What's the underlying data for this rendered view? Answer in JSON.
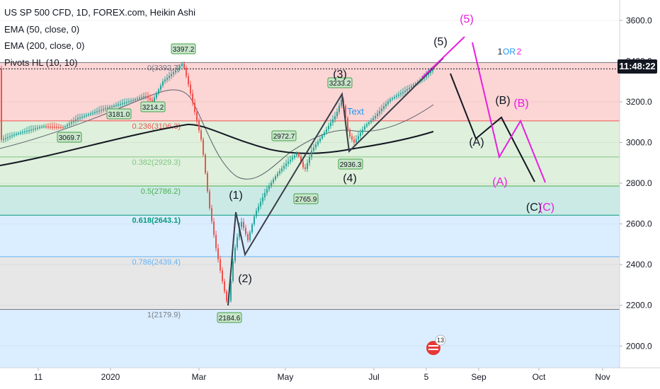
{
  "legend": {
    "title": "US SP 500 CFD, 1D, FOREX.com, Heikin Ashi",
    "ema50": "EMA (50, close, 0)",
    "ema200": "EMA (200, close, 0)",
    "pivots": "Pivots HL (10, 10)"
  },
  "countdown": "11:48:22",
  "colors": {
    "candle_up": "#26a69a",
    "candle_down": "#ef5350",
    "ema50": "#5d606b",
    "ema200": "#131722",
    "wave_black": "#131722",
    "wave_magenta": "#e91ee0",
    "note_blue": "#2196f3"
  },
  "chart_data": {
    "type": "candlestick",
    "y_axis": {
      "ylim": [
        1880,
        3700
      ],
      "ticks": [
        2000,
        2200,
        2400,
        2600,
        2800,
        3000,
        3200,
        3400,
        3600
      ],
      "tick_labels": [
        "2000.0",
        "2200.0",
        "2400.0",
        "2600.0",
        "2800.0",
        "3000.0",
        "3200.0",
        "3400.0",
        "3600.0"
      ]
    },
    "x_axis": {
      "tick_labels": [
        "11",
        "2020",
        "Mar",
        "May",
        "Jul",
        "5",
        "Sep",
        "Oct",
        "Nov"
      ]
    },
    "fibonacci": [
      {
        "label": "0(3392.7)",
        "value": 3392.7,
        "color": "#787b86"
      },
      {
        "label": "0.236(3106.3)",
        "value": 3106.3,
        "color": "#ef5350"
      },
      {
        "label": "0.382(2929.3)",
        "value": 2929.3,
        "color": "#81c784"
      },
      {
        "label": "0.5(2786.2)",
        "value": 2786.2,
        "color": "#4caf50"
      },
      {
        "label": "0.618(2643.1)",
        "value": 2643.1,
        "color": "#089981"
      },
      {
        "label": "0.786(2439.4)",
        "value": 2439.4,
        "color": "#64b5f6"
      },
      {
        "label": "1(2179.9)",
        "value": 2179.9,
        "color": "#787b86"
      }
    ],
    "current_price": 3362,
    "pivot_labels": [
      {
        "text": "3069.7",
        "value": 3069.7
      },
      {
        "text": "3181.0",
        "value": 3181.0
      },
      {
        "text": "3214.2",
        "value": 3214.2
      },
      {
        "text": "3397.2",
        "value": 3397.2
      },
      {
        "text": "2184.6",
        "value": 2184.6
      },
      {
        "text": "2972.7",
        "value": 2972.7
      },
      {
        "text": "2765.9",
        "value": 2765.9
      },
      {
        "text": "3233.2",
        "value": 3233.2
      },
      {
        "text": "2936.3",
        "value": 2936.3
      }
    ],
    "wave_labels": [
      {
        "text": "(1)",
        "color": "#131722"
      },
      {
        "text": "(2)",
        "color": "#131722"
      },
      {
        "text": "(3)",
        "color": "#131722"
      },
      {
        "text": "(4)",
        "color": "#131722"
      },
      {
        "text": "(5)",
        "color": "#131722"
      },
      {
        "text": "(5)",
        "color": "#e91ee0"
      },
      {
        "text": "(A)",
        "color": "#131722"
      },
      {
        "text": "(B)",
        "color": "#131722"
      },
      {
        "text": "(C)",
        "color": "#131722"
      },
      {
        "text": "(A)",
        "color": "#e91ee0"
      },
      {
        "text": "(B)",
        "color": "#e91ee0"
      },
      {
        "text": "(C)",
        "color": "#e91ee0"
      }
    ],
    "notes": {
      "text_label": "Text",
      "or_1": "1",
      "or_word": "OR",
      "or_2": "2",
      "badge": "13"
    }
  }
}
